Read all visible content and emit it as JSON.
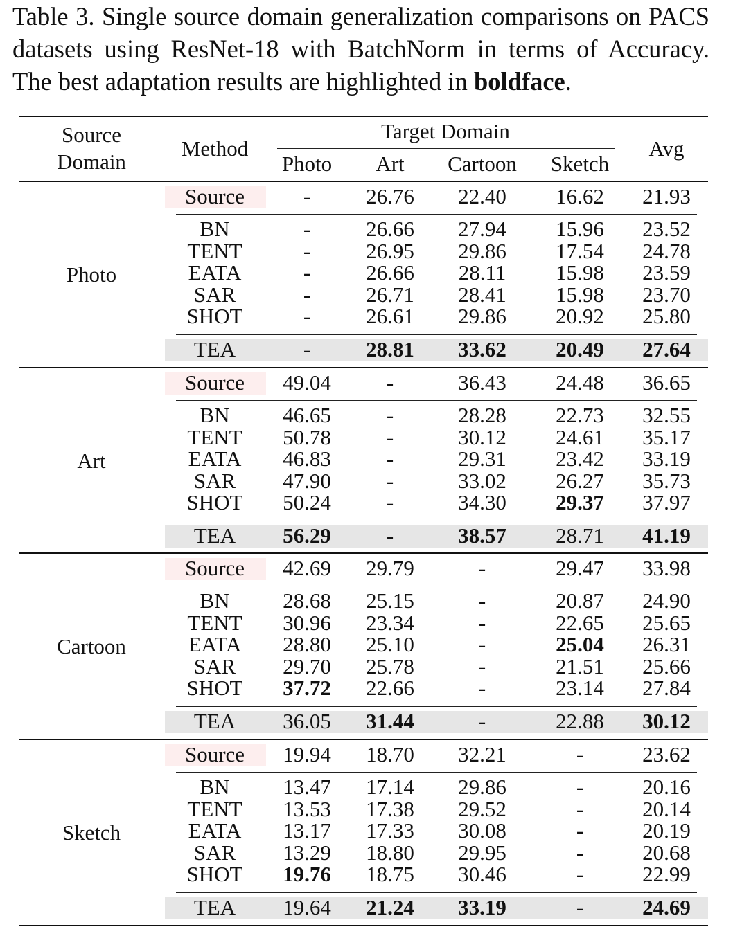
{
  "caption": {
    "part1": "Table 3.  Single source domain generalization comparisons on PACS datasets using ResNet-18 with BatchNorm in terms of Accuracy. The best adaptation results are highlighted in ",
    "bold": "boldface",
    "end": "."
  },
  "header": {
    "source_domain_l1": "Source",
    "source_domain_l2": "Domain",
    "method": "Method",
    "target_domain": "Target Domain",
    "avg": "Avg",
    "target_columns": [
      "Photo",
      "Art",
      "Cartoon",
      "Sketch"
    ]
  },
  "groups": [
    {
      "source": "Photo",
      "rows": [
        {
          "method": "Source",
          "values": [
            "-",
            "26.76",
            "22.40",
            "16.62",
            "21.93"
          ],
          "bold": []
        },
        {
          "method": "BN",
          "values": [
            "-",
            "26.66",
            "27.94",
            "15.96",
            "23.52"
          ],
          "bold": []
        },
        {
          "method": "TENT",
          "values": [
            "-",
            "26.95",
            "29.86",
            "17.54",
            "24.78"
          ],
          "bold": []
        },
        {
          "method": "EATA",
          "values": [
            "-",
            "26.66",
            "28.11",
            "15.98",
            "23.59"
          ],
          "bold": []
        },
        {
          "method": "SAR",
          "values": [
            "-",
            "26.71",
            "28.41",
            "15.98",
            "23.70"
          ],
          "bold": []
        },
        {
          "method": "SHOT",
          "values": [
            "-",
            "26.61",
            "29.86",
            "20.92",
            "25.80"
          ],
          "bold": []
        },
        {
          "method": "TEA",
          "values": [
            "-",
            "28.81",
            "33.62",
            "20.49",
            "27.64"
          ],
          "bold": [
            1,
            2,
            3,
            4
          ]
        }
      ]
    },
    {
      "source": "Art",
      "rows": [
        {
          "method": "Source",
          "values": [
            "49.04",
            "-",
            "36.43",
            "24.48",
            "36.65"
          ],
          "bold": []
        },
        {
          "method": "BN",
          "values": [
            "46.65",
            "-",
            "28.28",
            "22.73",
            "32.55"
          ],
          "bold": []
        },
        {
          "method": "TENT",
          "values": [
            "50.78",
            "-",
            "30.12",
            "24.61",
            "35.17"
          ],
          "bold": []
        },
        {
          "method": "EATA",
          "values": [
            "46.83",
            "-",
            "29.31",
            "23.42",
            "33.19"
          ],
          "bold": []
        },
        {
          "method": "SAR",
          "values": [
            "47.90",
            "-",
            "33.02",
            "26.27",
            "35.73"
          ],
          "bold": []
        },
        {
          "method": "SHOT",
          "values": [
            "50.24",
            "-",
            "34.30",
            "29.37",
            "37.97"
          ],
          "bold": [
            3
          ]
        },
        {
          "method": "TEA",
          "values": [
            "56.29",
            "-",
            "38.57",
            "28.71",
            "41.19"
          ],
          "bold": [
            0,
            2,
            4
          ]
        }
      ]
    },
    {
      "source": "Cartoon",
      "rows": [
        {
          "method": "Source",
          "values": [
            "42.69",
            "29.79",
            "-",
            "29.47",
            "33.98"
          ],
          "bold": []
        },
        {
          "method": "BN",
          "values": [
            "28.68",
            "25.15",
            "-",
            "20.87",
            "24.90"
          ],
          "bold": []
        },
        {
          "method": "TENT",
          "values": [
            "30.96",
            "23.34",
            "-",
            "22.65",
            "25.65"
          ],
          "bold": []
        },
        {
          "method": "EATA",
          "values": [
            "28.80",
            "25.10",
            "-",
            "25.04",
            "26.31"
          ],
          "bold": [
            3
          ]
        },
        {
          "method": "SAR",
          "values": [
            "29.70",
            "25.78",
            "-",
            "21.51",
            "25.66"
          ],
          "bold": []
        },
        {
          "method": "SHOT",
          "values": [
            "37.72",
            "22.66",
            "-",
            "23.14",
            "27.84"
          ],
          "bold": [
            0
          ]
        },
        {
          "method": "TEA",
          "values": [
            "36.05",
            "31.44",
            "-",
            "22.88",
            "30.12"
          ],
          "bold": [
            1,
            4
          ]
        }
      ]
    },
    {
      "source": "Sketch",
      "rows": [
        {
          "method": "Source",
          "values": [
            "19.94",
            "18.70",
            "32.21",
            "-",
            "23.62"
          ],
          "bold": []
        },
        {
          "method": "BN",
          "values": [
            "13.47",
            "17.14",
            "29.86",
            "-",
            "20.16"
          ],
          "bold": []
        },
        {
          "method": "TENT",
          "values": [
            "13.53",
            "17.38",
            "29.52",
            "-",
            "20.14"
          ],
          "bold": []
        },
        {
          "method": "EATA",
          "values": [
            "13.17",
            "17.33",
            "30.08",
            "-",
            "20.19"
          ],
          "bold": []
        },
        {
          "method": "SAR",
          "values": [
            "13.29",
            "18.80",
            "29.95",
            "-",
            "20.68"
          ],
          "bold": []
        },
        {
          "method": "SHOT",
          "values": [
            "19.76",
            "18.75",
            "30.46",
            "-",
            "22.99"
          ],
          "bold": [
            0
          ]
        },
        {
          "method": "TEA",
          "values": [
            "19.64",
            "21.24",
            "33.19",
            "-",
            "24.69"
          ],
          "bold": [
            1,
            2,
            4
          ]
        }
      ]
    }
  ],
  "colors": {
    "tea_highlight": "#e6e6e6",
    "source_highlight": "#fdeeee"
  }
}
